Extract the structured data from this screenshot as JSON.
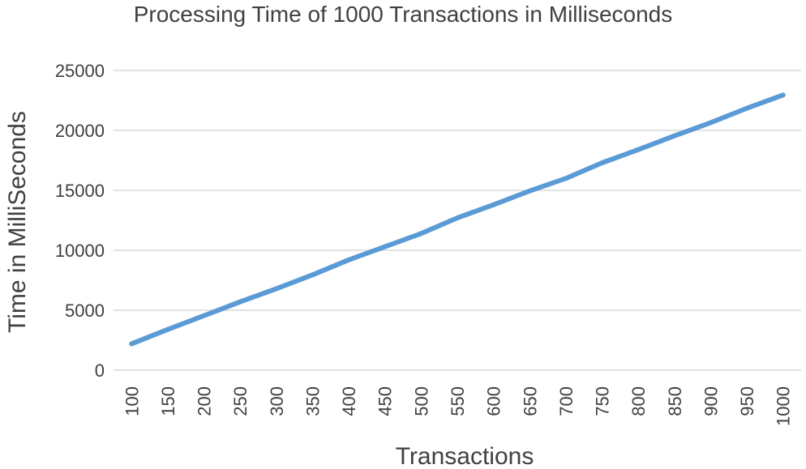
{
  "chart_data": {
    "type": "line",
    "title": "Processing Time of 1000 Transactions in Milliseconds",
    "xlabel": "Transactions",
    "ylabel": "Time in MilliSeconds",
    "categories": [
      "100",
      "150",
      "200",
      "250",
      "300",
      "350",
      "400",
      "450",
      "500",
      "550",
      "600",
      "650",
      "700",
      "750",
      "800",
      "850",
      "900",
      "950",
      "1000"
    ],
    "series": [
      {
        "values": [
          2200,
          3400,
          4550,
          5700,
          6800,
          7950,
          9200,
          10300,
          11400,
          12700,
          13800,
          14950,
          16000,
          17300,
          18400,
          19550,
          20650,
          21850,
          22950
        ]
      }
    ],
    "ylim": [
      0,
      25000
    ],
    "yticks": [
      "0",
      "5000",
      "10000",
      "15000",
      "20000",
      "25000"
    ],
    "grid": true,
    "legend": "none",
    "line_color": "#5B9BD5",
    "grid_color": "#D9D9D9"
  }
}
